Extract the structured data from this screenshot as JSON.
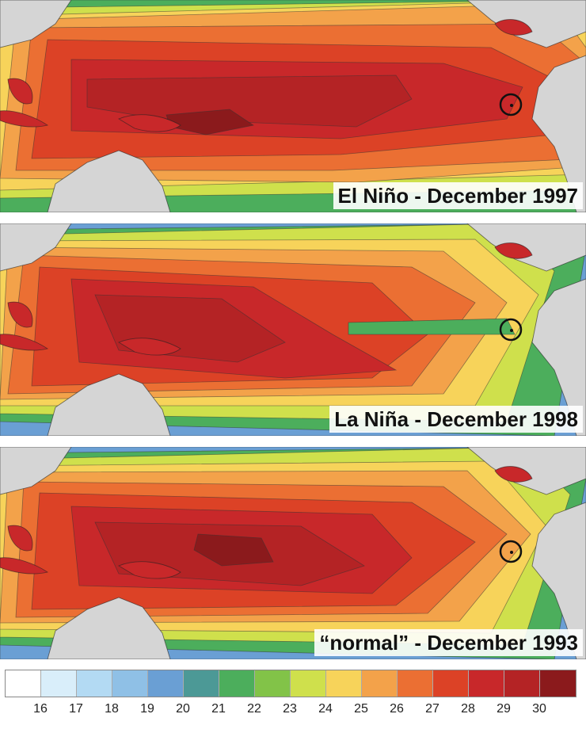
{
  "panels": [
    {
      "label": "El Niño - December 1997"
    },
    {
      "label": "La Niña - December 1998"
    },
    {
      "label": "“normal” - December 1993"
    }
  ],
  "legend": {
    "colors": [
      "#ffffff",
      "#d9eefa",
      "#b3daf3",
      "#8fc0e6",
      "#6a9fd4",
      "#4c9996",
      "#4cae5c",
      "#82c348",
      "#cfe04c",
      "#f7d35a",
      "#f3a24a",
      "#eb6f33",
      "#dc4226",
      "#c8282a",
      "#b42325",
      "#8b1a1c"
    ],
    "tick_labels": [
      "16",
      "17",
      "18",
      "19",
      "20",
      "21",
      "22",
      "23",
      "24",
      "25",
      "26",
      "27",
      "28",
      "29",
      "30"
    ]
  }
}
